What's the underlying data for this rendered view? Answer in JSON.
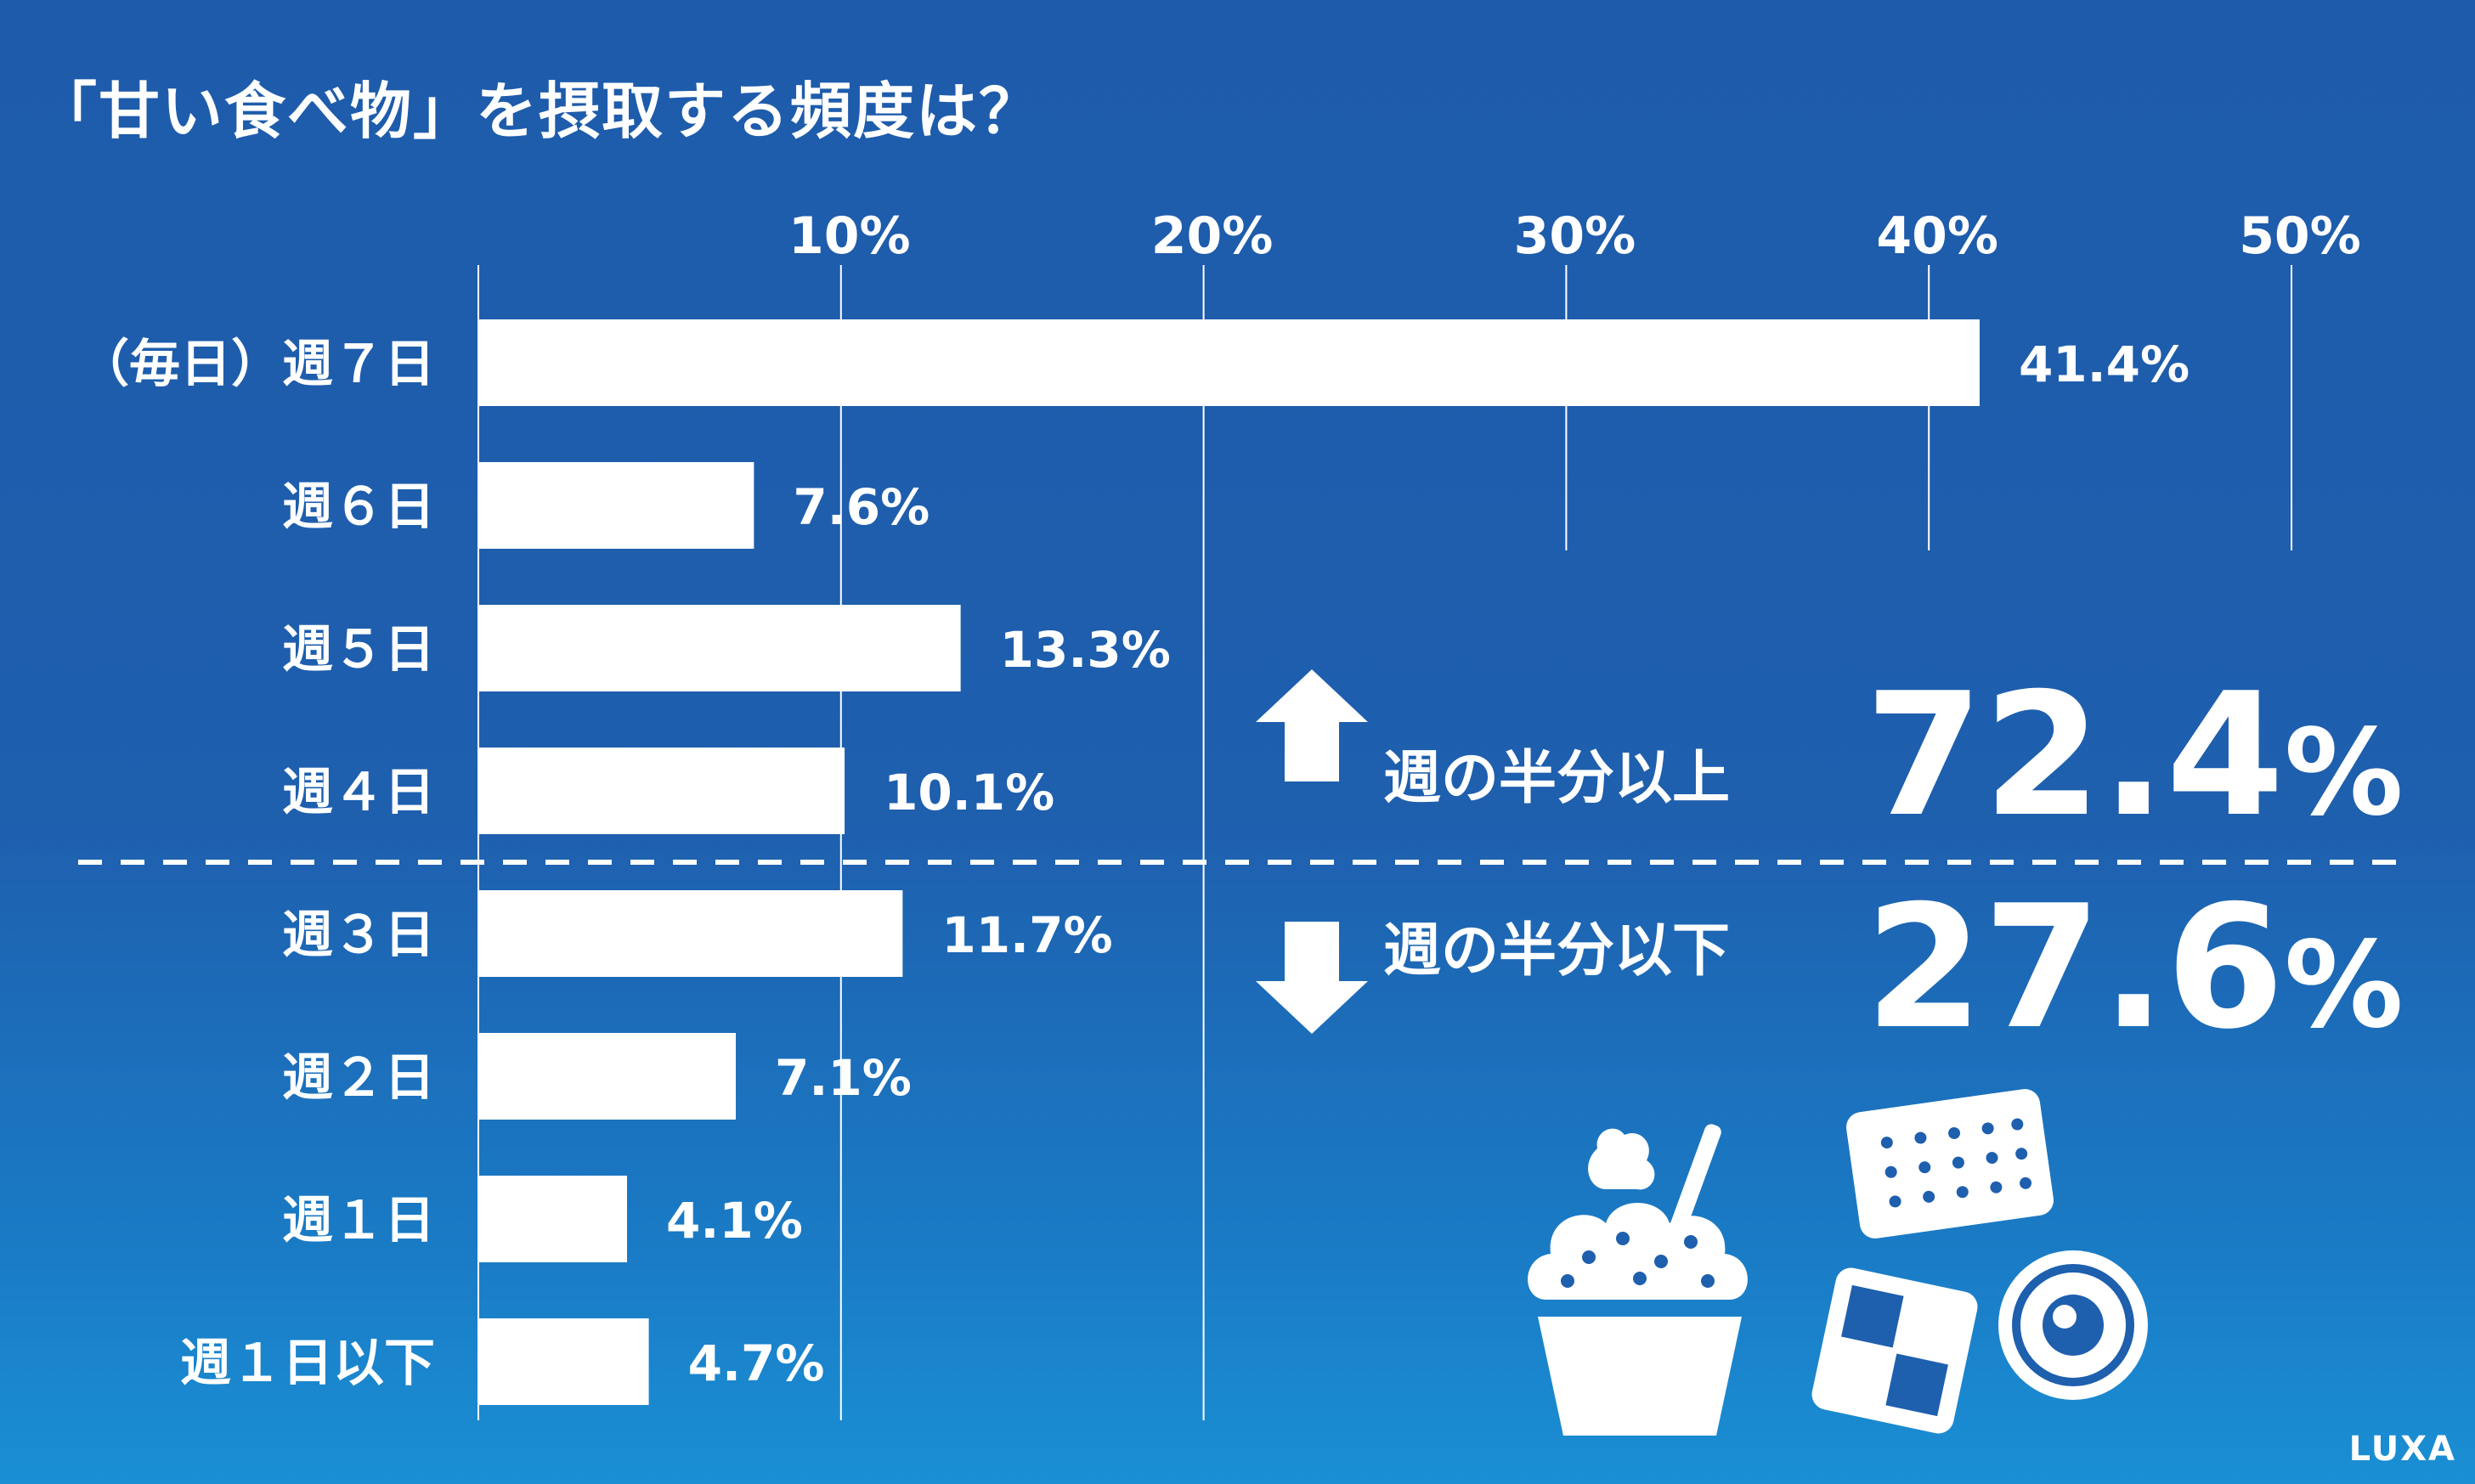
{
  "title": "「甘い食べ物」を摂取する頻度は？",
  "chart_data": {
    "type": "bar",
    "orientation": "horizontal",
    "categories": [
      "（毎日）週７日",
      "週６日",
      "週５日",
      "週４日",
      "週３日",
      "週２日",
      "週１日",
      "週１日以下"
    ],
    "values": [
      41.4,
      7.6,
      13.3,
      10.1,
      11.7,
      7.1,
      4.1,
      4.7
    ],
    "value_labels": [
      "41.4%",
      "7.6%",
      "13.3%",
      "10.1%",
      "11.7%",
      "7.1%",
      "4.1%",
      "4.7%"
    ],
    "x_ticks": [
      10,
      20,
      30,
      40,
      50
    ],
    "x_tick_labels": [
      "10%",
      "20%",
      "30%",
      "40%",
      "50%"
    ],
    "xlim": [
      0,
      50
    ],
    "grid": true,
    "divider_after_category": "週４日"
  },
  "summary": {
    "above": {
      "label": "週の半分以上",
      "value": "72.4",
      "unit": "%"
    },
    "below": {
      "label": "週の半分以下",
      "value": "27.6",
      "unit": "%"
    }
  },
  "brand": {
    "logo_text": "LUXA"
  },
  "colors": {
    "background_top": "#1e5bab",
    "background_bottom": "#1a8fd4",
    "bar": "#ffffff"
  },
  "icons": [
    "up-arrow-icon",
    "down-arrow-icon",
    "cupcake-icon",
    "biscuit-icon",
    "checker-cookie-icon",
    "round-cookie-icon"
  ]
}
